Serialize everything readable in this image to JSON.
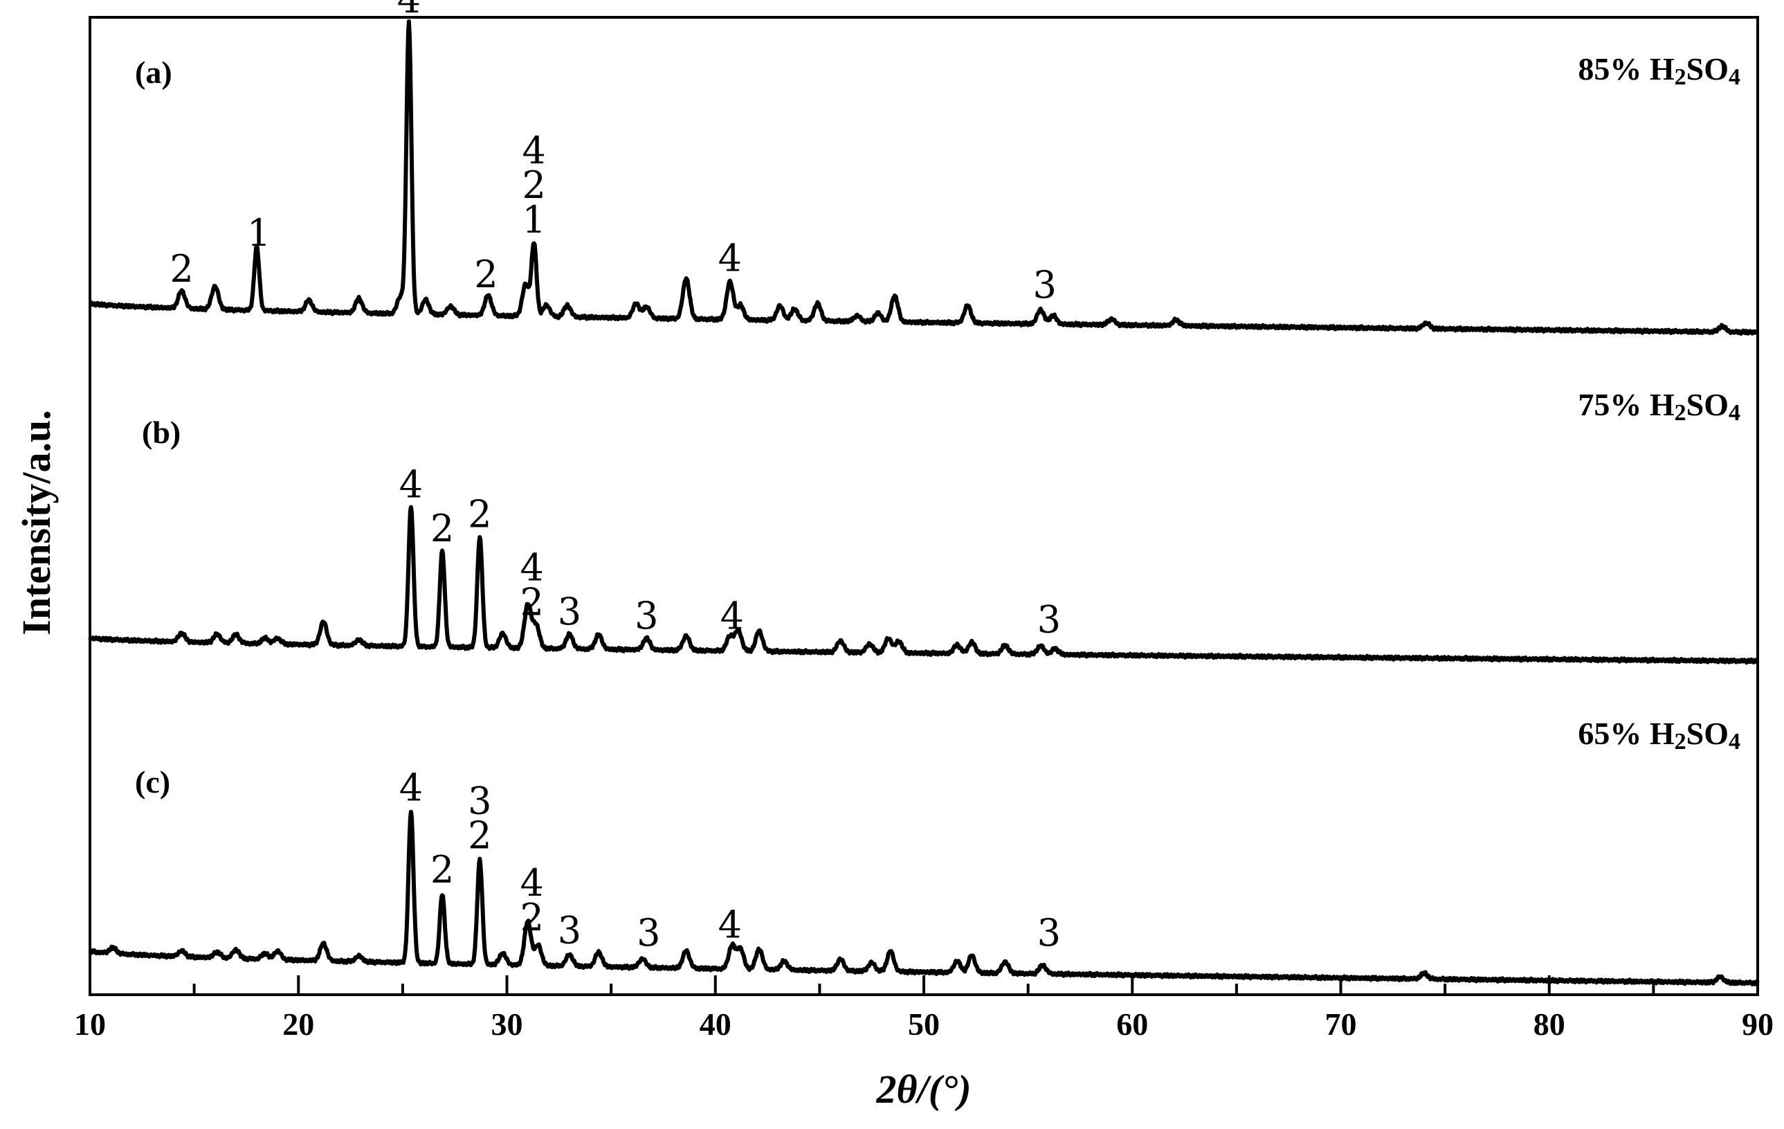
{
  "chart_data": {
    "type": "line",
    "xlabel": "2θ/(°)",
    "ylabel": "Intensity/a.u.",
    "xlim": [
      10,
      90
    ],
    "xticks": [
      "10",
      "20",
      "30",
      "40",
      "50",
      "60",
      "70",
      "80",
      "90"
    ],
    "yticks_shown": false,
    "grid": false,
    "series": [
      {
        "panel": "(a)",
        "name": "85% H2SO4",
        "label_main": "85% H",
        "label_sub1": "2",
        "label_mid": "SO",
        "label_sub2": "4",
        "baseline_start": 0.1,
        "baseline_end": 0.0,
        "peaks": [
          {
            "x": 14.4,
            "h": 0.06
          },
          {
            "x": 16.0,
            "h": 0.08
          },
          {
            "x": 18.0,
            "h": 0.22
          },
          {
            "x": 20.5,
            "h": 0.04
          },
          {
            "x": 22.9,
            "h": 0.05
          },
          {
            "x": 24.9,
            "h": 0.06
          },
          {
            "x": 25.3,
            "h": 1.0
          },
          {
            "x": 26.1,
            "h": 0.05
          },
          {
            "x": 27.3,
            "h": 0.03
          },
          {
            "x": 29.1,
            "h": 0.07
          },
          {
            "x": 30.9,
            "h": 0.11
          },
          {
            "x": 31.3,
            "h": 0.25
          },
          {
            "x": 31.9,
            "h": 0.04
          },
          {
            "x": 32.9,
            "h": 0.04
          },
          {
            "x": 36.2,
            "h": 0.05
          },
          {
            "x": 36.7,
            "h": 0.04
          },
          {
            "x": 38.6,
            "h": 0.14
          },
          {
            "x": 40.7,
            "h": 0.13
          },
          {
            "x": 41.2,
            "h": 0.05
          },
          {
            "x": 43.1,
            "h": 0.05
          },
          {
            "x": 43.8,
            "h": 0.04
          },
          {
            "x": 44.9,
            "h": 0.06
          },
          {
            "x": 46.8,
            "h": 0.02
          },
          {
            "x": 47.8,
            "h": 0.03
          },
          {
            "x": 48.6,
            "h": 0.09
          },
          {
            "x": 52.1,
            "h": 0.06
          },
          {
            "x": 55.6,
            "h": 0.05
          },
          {
            "x": 56.2,
            "h": 0.03
          },
          {
            "x": 59.0,
            "h": 0.02
          },
          {
            "x": 62.1,
            "h": 0.02
          },
          {
            "x": 74.1,
            "h": 0.02
          },
          {
            "x": 88.3,
            "h": 0.02
          }
        ],
        "peak_labels": [
          {
            "x": 14.4,
            "text": "2"
          },
          {
            "x": 18.1,
            "text": "1"
          },
          {
            "x": 25.3,
            "text": "4"
          },
          {
            "x": 29.0,
            "text": "2"
          },
          {
            "x": 31.3,
            "text": "1"
          },
          {
            "x": 31.3,
            "text": "2"
          },
          {
            "x": 31.3,
            "text": "4"
          },
          {
            "x": 40.7,
            "text": "4"
          },
          {
            "x": 55.8,
            "text": "3"
          }
        ]
      },
      {
        "panel": "(b)",
        "name": "75% H2SO4",
        "label_main": "75% H",
        "label_sub1": "2",
        "label_mid": "SO",
        "label_sub2": "4",
        "baseline_start": 0.08,
        "baseline_end": 0.0,
        "peaks": [
          {
            "x": 14.4,
            "h": 0.03
          },
          {
            "x": 16.1,
            "h": 0.03
          },
          {
            "x": 17.0,
            "h": 0.03
          },
          {
            "x": 18.4,
            "h": 0.02
          },
          {
            "x": 19.0,
            "h": 0.02
          },
          {
            "x": 21.2,
            "h": 0.08
          },
          {
            "x": 22.9,
            "h": 0.02
          },
          {
            "x": 25.4,
            "h": 0.48
          },
          {
            "x": 26.9,
            "h": 0.33
          },
          {
            "x": 28.7,
            "h": 0.38
          },
          {
            "x": 29.8,
            "h": 0.05
          },
          {
            "x": 31.0,
            "h": 0.15
          },
          {
            "x": 31.4,
            "h": 0.08
          },
          {
            "x": 33.0,
            "h": 0.05
          },
          {
            "x": 34.4,
            "h": 0.05
          },
          {
            "x": 36.7,
            "h": 0.04
          },
          {
            "x": 38.6,
            "h": 0.05
          },
          {
            "x": 40.7,
            "h": 0.05
          },
          {
            "x": 41.1,
            "h": 0.07
          },
          {
            "x": 42.1,
            "h": 0.07
          },
          {
            "x": 46.0,
            "h": 0.04
          },
          {
            "x": 47.4,
            "h": 0.03
          },
          {
            "x": 48.3,
            "h": 0.05
          },
          {
            "x": 48.8,
            "h": 0.04
          },
          {
            "x": 51.6,
            "h": 0.03
          },
          {
            "x": 52.3,
            "h": 0.04
          },
          {
            "x": 53.9,
            "h": 0.03
          },
          {
            "x": 55.6,
            "h": 0.03
          },
          {
            "x": 56.3,
            "h": 0.02
          }
        ],
        "peak_labels": [
          {
            "x": 25.4,
            "text": "4"
          },
          {
            "x": 26.9,
            "text": "2"
          },
          {
            "x": 28.7,
            "text": "2"
          },
          {
            "x": 31.2,
            "text": "2"
          },
          {
            "x": 31.2,
            "text": "4"
          },
          {
            "x": 33.0,
            "text": "3"
          },
          {
            "x": 36.7,
            "text": "3"
          },
          {
            "x": 40.8,
            "text": "4"
          },
          {
            "x": 56.0,
            "text": "3"
          }
        ]
      },
      {
        "panel": "(c)",
        "name": "65% H2SO4",
        "label_main": "65% H",
        "label_sub1": "2",
        "label_mid": "SO",
        "label_sub2": "4",
        "baseline_start": 0.11,
        "baseline_end": 0.0,
        "peaks": [
          {
            "x": 11.1,
            "h": 0.02
          },
          {
            "x": 14.4,
            "h": 0.02
          },
          {
            "x": 16.1,
            "h": 0.02
          },
          {
            "x": 17.0,
            "h": 0.03
          },
          {
            "x": 18.4,
            "h": 0.02
          },
          {
            "x": 19.0,
            "h": 0.03
          },
          {
            "x": 21.2,
            "h": 0.06
          },
          {
            "x": 22.9,
            "h": 0.02
          },
          {
            "x": 25.4,
            "h": 0.52
          },
          {
            "x": 26.9,
            "h": 0.24
          },
          {
            "x": 28.7,
            "h": 0.36
          },
          {
            "x": 29.8,
            "h": 0.04
          },
          {
            "x": 31.0,
            "h": 0.15
          },
          {
            "x": 31.5,
            "h": 0.07
          },
          {
            "x": 33.0,
            "h": 0.04
          },
          {
            "x": 34.4,
            "h": 0.05
          },
          {
            "x": 36.5,
            "h": 0.03
          },
          {
            "x": 38.6,
            "h": 0.06
          },
          {
            "x": 40.8,
            "h": 0.08
          },
          {
            "x": 41.2,
            "h": 0.07
          },
          {
            "x": 42.1,
            "h": 0.07
          },
          {
            "x": 43.3,
            "h": 0.03
          },
          {
            "x": 46.0,
            "h": 0.04
          },
          {
            "x": 47.5,
            "h": 0.03
          },
          {
            "x": 48.4,
            "h": 0.07
          },
          {
            "x": 51.6,
            "h": 0.04
          },
          {
            "x": 52.3,
            "h": 0.06
          },
          {
            "x": 53.9,
            "h": 0.04
          },
          {
            "x": 55.7,
            "h": 0.03
          },
          {
            "x": 74.0,
            "h": 0.02
          },
          {
            "x": 88.2,
            "h": 0.02
          }
        ],
        "peak_labels": [
          {
            "x": 25.4,
            "text": "4"
          },
          {
            "x": 26.9,
            "text": "2"
          },
          {
            "x": 28.7,
            "text": "2"
          },
          {
            "x": 28.7,
            "text": "3"
          },
          {
            "x": 31.2,
            "text": "2"
          },
          {
            "x": 31.2,
            "text": "4"
          },
          {
            "x": 33.0,
            "text": "3"
          },
          {
            "x": 36.8,
            "text": "3"
          },
          {
            "x": 40.7,
            "text": "4"
          },
          {
            "x": 56.0,
            "text": "3"
          }
        ]
      }
    ]
  }
}
